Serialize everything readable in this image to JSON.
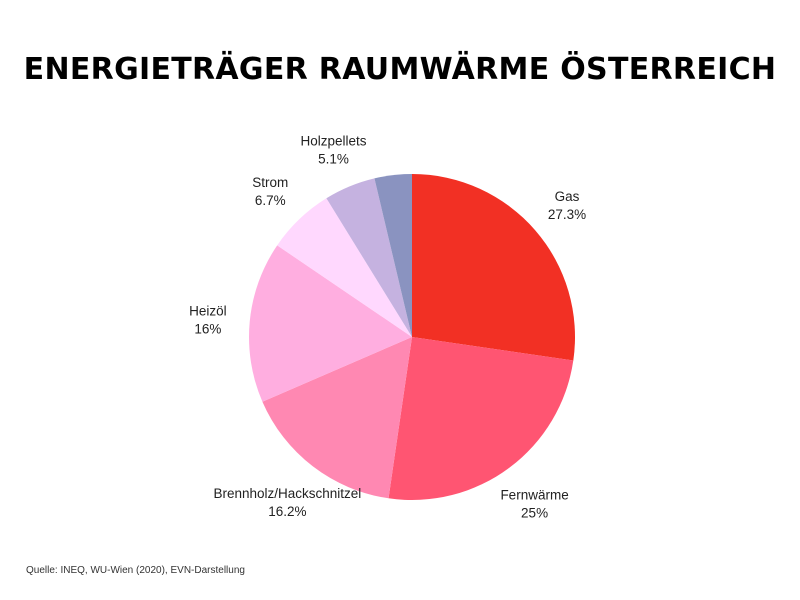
{
  "chart_data": {
    "type": "pie",
    "title": "ENERGIETRÄGER RAUMWÄRME ÖSTERREICH",
    "slices": [
      {
        "label": "Gas",
        "value": 27.3,
        "value_label": "27.3%",
        "color": "#F23024"
      },
      {
        "label": "Fernwärme",
        "value": 25,
        "value_label": "25%",
        "color": "#FF5572"
      },
      {
        "label": "Brennholz/Hackschnitzel",
        "value": 16.2,
        "value_label": "16.2%",
        "color": "#FF88B2"
      },
      {
        "label": "Heizöl",
        "value": 16,
        "value_label": "16%",
        "color": "#FFAEE0"
      },
      {
        "label": "Strom",
        "value": 6.7,
        "value_label": "6.7%",
        "color": "#FFD8FE"
      },
      {
        "label": "Holzpellets",
        "value": 5.1,
        "value_label": "5.1%",
        "color": "#C5B2E0"
      },
      {
        "label": "",
        "value": 3.7,
        "value_label": "",
        "color": "#8A93C0"
      }
    ],
    "start": "12 o'clock",
    "direction": "clockwise"
  },
  "source": "Quelle: INEQ, WU-Wien (2020), EVN-Darstellung"
}
